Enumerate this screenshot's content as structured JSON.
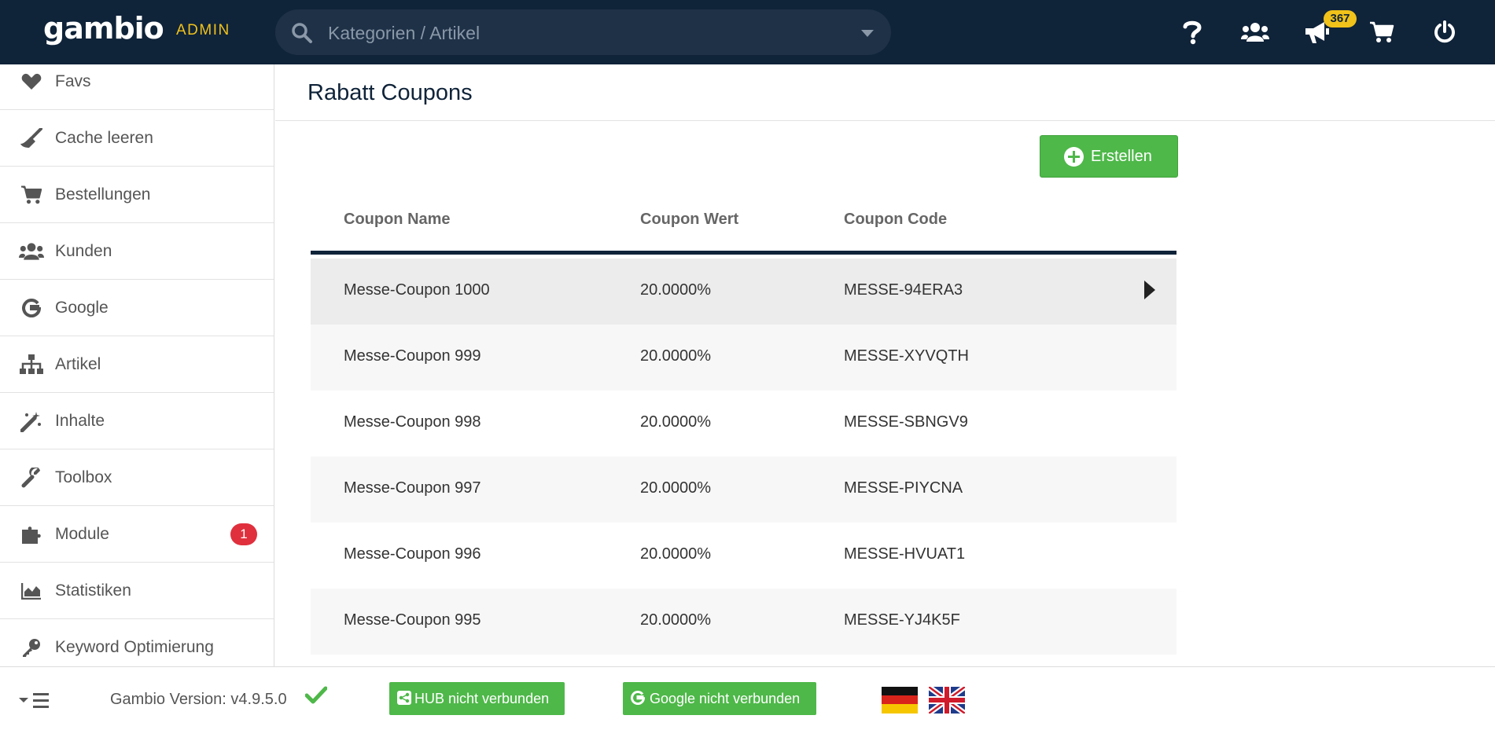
{
  "app": {
    "logo": "gambio",
    "admin_label": "ADMIN"
  },
  "search": {
    "placeholder": "Kategorien / Artikel"
  },
  "header": {
    "notification_count": "367",
    "icons": [
      "help-icon",
      "customers-icon",
      "megaphone-icon",
      "cart-icon",
      "power-icon"
    ]
  },
  "sidebar": {
    "items": [
      {
        "label": "Favs",
        "icon": "heart-icon"
      },
      {
        "label": "Cache leeren",
        "icon": "broom-icon"
      },
      {
        "label": "Bestellungen",
        "icon": "cart-icon"
      },
      {
        "label": "Kunden",
        "icon": "users-icon"
      },
      {
        "label": "Google",
        "icon": "google-icon"
      },
      {
        "label": "Artikel",
        "icon": "sitemap-icon"
      },
      {
        "label": "Inhalte",
        "icon": "magic-wand-icon"
      },
      {
        "label": "Toolbox",
        "icon": "wrench-icon"
      },
      {
        "label": "Module",
        "icon": "puzzle-icon",
        "badge": "1"
      },
      {
        "label": "Statistiken",
        "icon": "area-chart-icon"
      },
      {
        "label": "Keyword Optimierung",
        "icon": "key-icon"
      }
    ]
  },
  "main": {
    "title": "Rabatt Coupons",
    "create_label": "Erstellen",
    "table": {
      "columns": [
        "Coupon Name",
        "Coupon Wert",
        "Coupon Code"
      ],
      "rows": [
        {
          "name": "Messe-Coupon 1000",
          "value": "20.0000%",
          "code": "MESSE-94ERA3"
        },
        {
          "name": "Messe-Coupon 999",
          "value": "20.0000%",
          "code": "MESSE-XYVQTH"
        },
        {
          "name": "Messe-Coupon 998",
          "value": "20.0000%",
          "code": "MESSE-SBNGV9"
        },
        {
          "name": "Messe-Coupon 997",
          "value": "20.0000%",
          "code": "MESSE-PIYCNA"
        },
        {
          "name": "Messe-Coupon 996",
          "value": "20.0000%",
          "code": "MESSE-HVUAT1"
        },
        {
          "name": "Messe-Coupon 995",
          "value": "20.0000%",
          "code": "MESSE-YJ4K5F"
        }
      ]
    }
  },
  "footer": {
    "version": "Gambio Version: v4.9.5.0",
    "hub_label": "HUB nicht verbunden",
    "google_label": "Google nicht verbunden",
    "languages": [
      "de-flag",
      "gb-flag"
    ]
  },
  "colors": {
    "topbar": "#0f2339",
    "accent_yellow": "#f0c21a",
    "success_green": "#4eb849",
    "badge_red": "#e0303d"
  }
}
